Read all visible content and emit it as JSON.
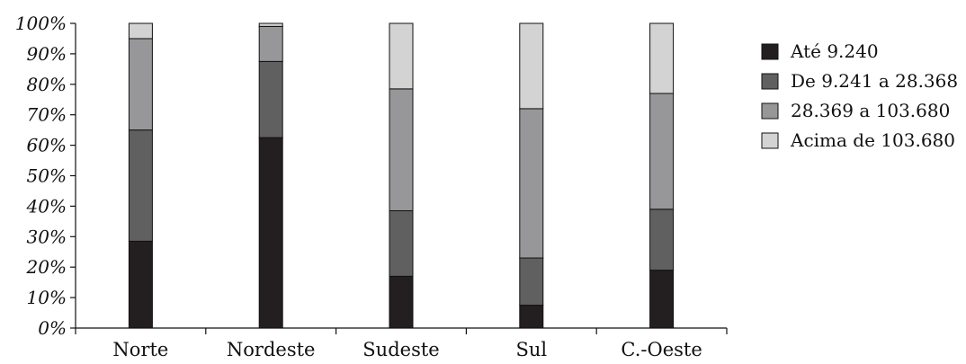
{
  "chart_data": {
    "type": "bar",
    "stacked": true,
    "title": "",
    "xlabel": "",
    "ylabel": "",
    "ylim": [
      0,
      100
    ],
    "yticks": [
      "0%",
      "10%",
      "20%",
      "30%",
      "40%",
      "50%",
      "60%",
      "70%",
      "80%",
      "90%",
      "100%"
    ],
    "categories": [
      "Norte",
      "Nordeste",
      "Sudeste",
      "Sul",
      "C.-Oeste"
    ],
    "series": [
      {
        "name": "Até 9.240",
        "color": "#231f20",
        "values": [
          28.5,
          62.5,
          17,
          7.5,
          19
        ]
      },
      {
        "name": "De 9.241 a 28.368",
        "color": "#606060",
        "values": [
          36.5,
          25,
          21.5,
          15.5,
          20
        ]
      },
      {
        "name": "28.369 a 103.680",
        "color": "#97979a",
        "values": [
          30,
          11.5,
          40,
          49,
          38
        ]
      },
      {
        "name": "Acima de 103.680",
        "color": "#d3d3d4",
        "values": [
          5,
          1,
          21.5,
          28,
          23
        ]
      }
    ],
    "legend_position": "right",
    "grid": false
  }
}
